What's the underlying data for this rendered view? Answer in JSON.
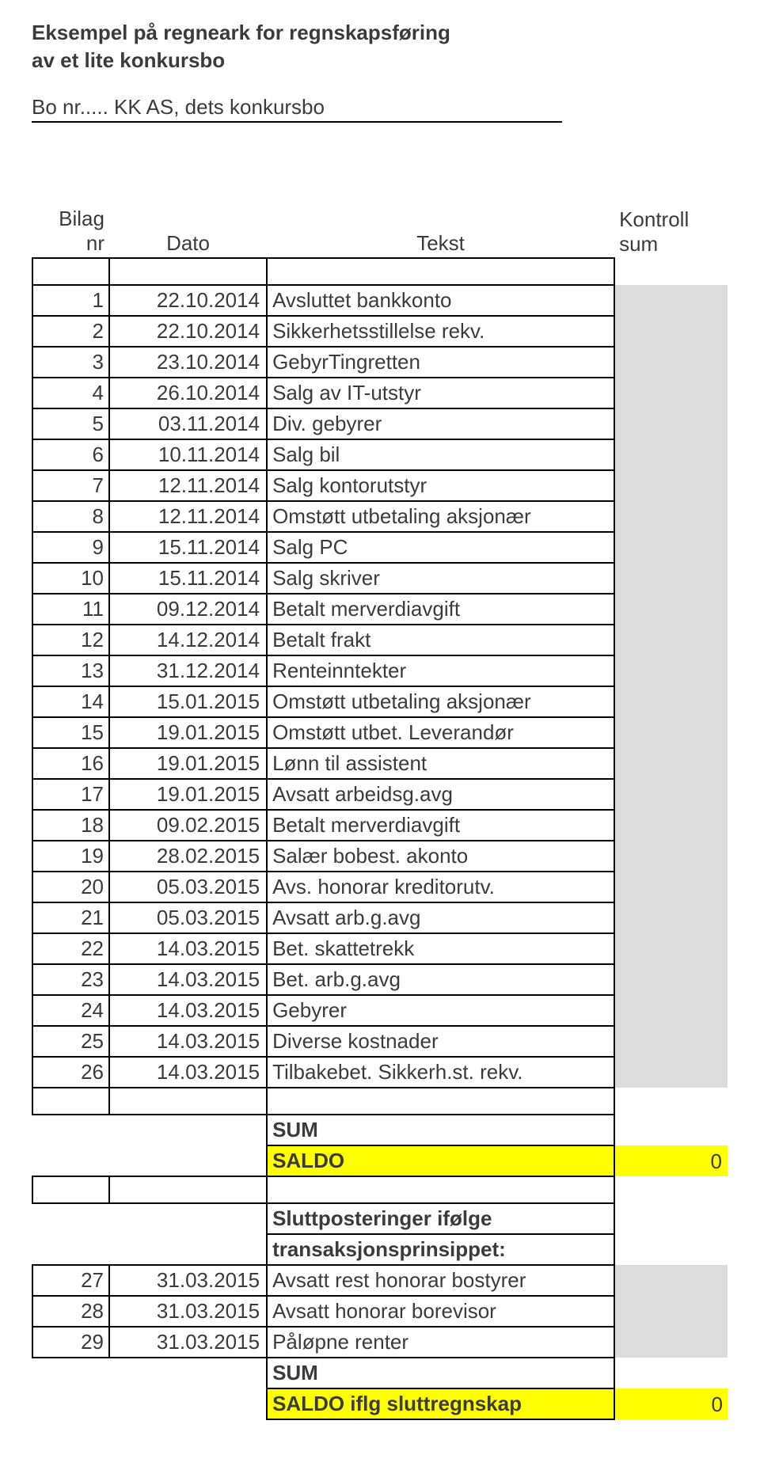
{
  "title_l1": "Eksempel på regneark for regnskapsføring",
  "title_l2": "av et lite konkursbo",
  "subtitle": "Bo nr..... KK AS, dets konkursbo",
  "colors": {
    "row_shade": "#dcdcdc",
    "highlight": "#ffff00",
    "text": "#3b3b3b",
    "border": "#000000"
  },
  "header": {
    "nr": "Bilag nr",
    "date": "Dato",
    "text": "Tekst",
    "kontroll": "Kontroll",
    "sum": "sum"
  },
  "rows": [
    {
      "nr": "1",
      "date": "22.10.2014",
      "text": "Avsluttet bankkonto"
    },
    {
      "nr": "2",
      "date": "22.10.2014",
      "text": "Sikkerhetsstillelse rekv."
    },
    {
      "nr": "3",
      "date": "23.10.2014",
      "text": "GebyrTingretten"
    },
    {
      "nr": "4",
      "date": "26.10.2014",
      "text": "Salg av IT-utstyr"
    },
    {
      "nr": "5",
      "date": "03.11.2014",
      "text": "Div. gebyrer"
    },
    {
      "nr": "6",
      "date": "10.11.2014",
      "text": "Salg bil"
    },
    {
      "nr": "7",
      "date": "12.11.2014",
      "text": "Salg kontorutstyr"
    },
    {
      "nr": "8",
      "date": "12.11.2014",
      "text": "Omstøtt utbetaling aksjonær"
    },
    {
      "nr": "9",
      "date": "15.11.2014",
      "text": "Salg PC"
    },
    {
      "nr": "10",
      "date": "15.11.2014",
      "text": "Salg skriver"
    },
    {
      "nr": "11",
      "date": "09.12.2014",
      "text": "Betalt merverdiavgift"
    },
    {
      "nr": "12",
      "date": "14.12.2014",
      "text": "Betalt frakt"
    },
    {
      "nr": "13",
      "date": "31.12.2014",
      "text": "Renteinntekter"
    },
    {
      "nr": "14",
      "date": "15.01.2015",
      "text": "Omstøtt utbetaling aksjonær"
    },
    {
      "nr": "15",
      "date": "19.01.2015",
      "text": "Omstøtt utbet. Leverandør"
    },
    {
      "nr": "16",
      "date": "19.01.2015",
      "text": "Lønn til assistent"
    },
    {
      "nr": "17",
      "date": "19.01.2015",
      "text": "Avsatt arbeidsg.avg"
    },
    {
      "nr": "18",
      "date": "09.02.2015",
      "text": "Betalt merverdiavgift"
    },
    {
      "nr": "19",
      "date": "28.02.2015",
      "text": "Salær bobest. akonto"
    },
    {
      "nr": "20",
      "date": "05.03.2015",
      "text": "Avs. honorar kreditorutv."
    },
    {
      "nr": "21",
      "date": "05.03.2015",
      "text": "Avsatt arb.g.avg"
    },
    {
      "nr": "22",
      "date": "14.03.2015",
      "text": "Bet. skattetrekk"
    },
    {
      "nr": "23",
      "date": "14.03.2015",
      "text": "Bet. arb.g.avg"
    },
    {
      "nr": "24",
      "date": "14.03.2015",
      "text": "Gebyrer"
    },
    {
      "nr": "25",
      "date": "14.03.2015",
      "text": "Diverse kostnader"
    },
    {
      "nr": "26",
      "date": "14.03.2015",
      "text": "Tilbakebet. Sikkerh.st. rekv."
    }
  ],
  "sum_label": "SUM",
  "saldo_label": "SALDO",
  "saldo_value": "0",
  "slutt_l1": "Sluttposteringer ifølge",
  "slutt_l2": "transaksjonsprinsippet:",
  "rows2": [
    {
      "nr": "27",
      "date": "31.03.2015",
      "text": "Avsatt rest honorar bostyrer"
    },
    {
      "nr": "28",
      "date": "31.03.2015",
      "text": "Avsatt honorar borevisor"
    },
    {
      "nr": "29",
      "date": "31.03.2015",
      "text": "Påløpne renter"
    }
  ],
  "sum2_label": "SUM",
  "saldo2_label": "SALDO iflg sluttregnskap",
  "saldo2_value": "0"
}
